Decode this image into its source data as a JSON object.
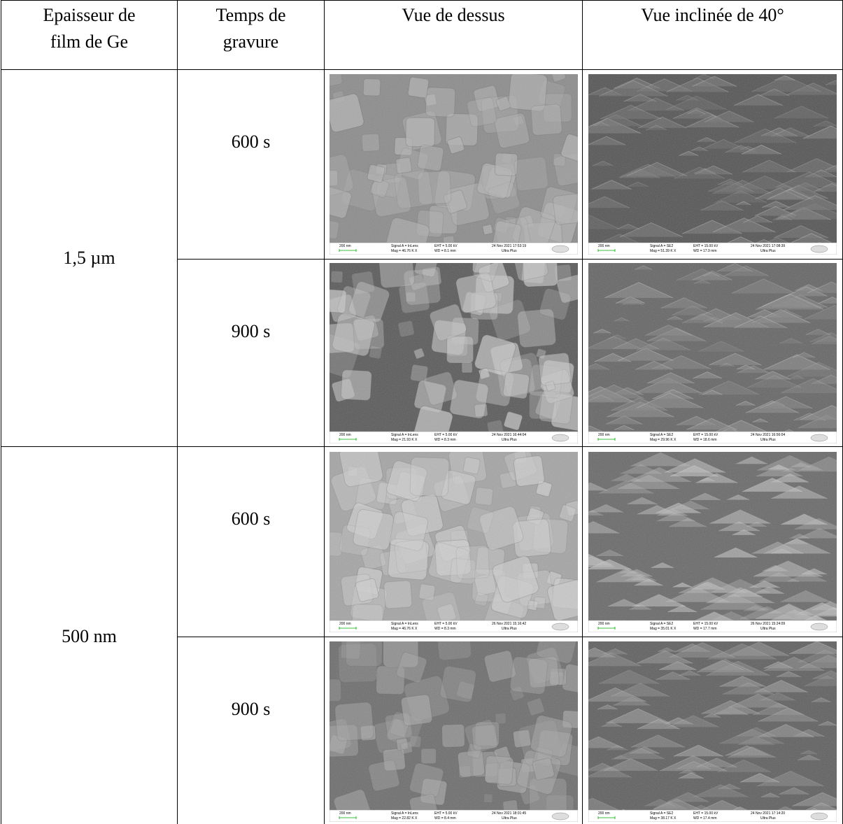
{
  "table": {
    "header": [
      [
        "Epaisseur de",
        "film de Ge"
      ],
      [
        "Temps de",
        "gravure"
      ],
      [
        "Vue de dessus"
      ],
      [
        "Vue inclinée de 40°"
      ]
    ],
    "groups": [
      {
        "thickness": "1,5 µm",
        "rows": [
          {
            "time": "600 s",
            "top": {
              "scale": "200 nm",
              "signal": "Signal A = InLens",
              "mag": "Mag = 46.76 K X",
              "eht": "EHT = 5.00 kV",
              "wd": "WD = 8.1 mm",
              "date": "24 Nov 2021 17:53:19",
              "instrument": "Ultra Plus"
            },
            "tilted": {
              "scale": "200 nm",
              "signal": "Signal A = SE2",
              "mag": "Mag = 51.39 K X",
              "eht": "EHT = 15.00 kV",
              "wd": "WD = 17.9 mm",
              "date": "24 Nov 2021 17:08:39",
              "instrument": "Ultra Plus"
            }
          },
          {
            "time": "900 s",
            "top": {
              "scale": "200 nm",
              "signal": "Signal A = InLens",
              "mag": "Mag = 21.93 K X",
              "eht": "EHT = 5.00 kV",
              "wd": "WD = 8.3 mm",
              "date": "24 Nov 2021 16:44:04",
              "instrument": "Ultra Plus"
            },
            "tilted": {
              "scale": "200 nm",
              "signal": "Signal A = SE2",
              "mag": "Mag = 29.96 K X",
              "eht": "EHT = 15.00 kV",
              "wd": "WD = 18.6 mm",
              "date": "24 Nov 2021 16:56:04",
              "instrument": "Ultra Plus"
            }
          }
        ]
      },
      {
        "thickness": "500 nm",
        "rows": [
          {
            "time": "600 s",
            "top": {
              "scale": "200 nm",
              "signal": "Signal A = InLens",
              "mag": "Mag = 46.76 K X",
              "eht": "EHT = 5.00 kV",
              "wd": "WD = 8.3 mm",
              "date": "26 Nov 2021 15:16:42",
              "instrument": "Ultra Plus"
            },
            "tilted": {
              "scale": "200 nm",
              "signal": "Signal A = SE2",
              "mag": "Mag = 35.01 K X",
              "eht": "EHT = 15.00 kV",
              "wd": "WD = 17.7 mm",
              "date": "26 Nov 2021 15:24:09",
              "instrument": "Ultra Plus"
            }
          },
          {
            "time": "900 s",
            "top": {
              "scale": "200 nm",
              "signal": "Signal A = InLens",
              "mag": "Mag = 22.82 K X",
              "eht": "EHT = 5.00 kV",
              "wd": "WD = 8.4 mm",
              "date": "24 Nov 2021 18:01:45",
              "instrument": "Ultra Plus"
            },
            "tilted": {
              "scale": "200 nm",
              "signal": "Signal A = SE2",
              "mag": "Mag = 38.17 K X",
              "eht": "EHT = 15.00 kV",
              "wd": "WD = 17.4 mm",
              "date": "24 Nov 2021 17:14:20",
              "instrument": "Ultra Plus"
            }
          }
        ]
      }
    ]
  }
}
